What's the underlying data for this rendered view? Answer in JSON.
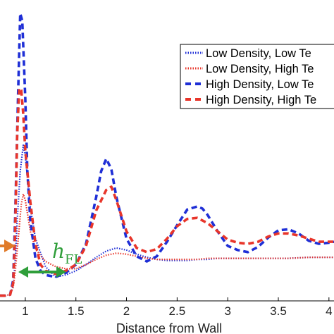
{
  "chart_data": {
    "type": "line",
    "title": "",
    "xlabel": "Distance from Wall",
    "ylabel": "",
    "xlim": [
      0.75,
      4.05
    ],
    "ylim": [
      -0.05,
      2.85
    ],
    "xticks": [
      1,
      1.5,
      2,
      2.5,
      3,
      3.5,
      4
    ],
    "xtick_labels": [
      "1",
      "1.5",
      "2",
      "2.5",
      "3",
      "3.5",
      "4"
    ],
    "grid": false,
    "legend_position": "top-right",
    "annotation": {
      "symbol": "h",
      "subscript": "FL",
      "color": "#2f9e3a"
    },
    "orange_arrow_color": "#e07b2a",
    "series": [
      {
        "name": "Low Density, Low Te",
        "color": "#1f2fd6",
        "style": "dotted",
        "x": [
          0.75,
          0.8,
          0.85,
          0.88,
          0.9,
          0.92,
          0.95,
          0.98,
          1.0,
          1.05,
          1.1,
          1.2,
          1.3,
          1.4,
          1.5,
          1.6,
          1.7,
          1.8,
          1.9,
          2.0,
          2.1,
          2.2,
          2.3,
          2.4,
          2.5,
          2.6,
          2.7,
          2.8,
          2.9,
          3.0,
          3.2,
          3.4,
          3.6,
          3.8,
          4.0,
          4.05
        ],
        "y": [
          0.0,
          0.0,
          0.01,
          0.1,
          0.32,
          0.72,
          1.2,
          1.45,
          1.35,
          0.85,
          0.55,
          0.28,
          0.18,
          0.2,
          0.24,
          0.3,
          0.37,
          0.43,
          0.46,
          0.44,
          0.4,
          0.37,
          0.35,
          0.34,
          0.34,
          0.34,
          0.35,
          0.35,
          0.36,
          0.36,
          0.36,
          0.36,
          0.36,
          0.37,
          0.37,
          0.37
        ]
      },
      {
        "name": "Low Density, High Te",
        "color": "#e8352a",
        "style": "dotted",
        "x": [
          0.75,
          0.8,
          0.85,
          0.88,
          0.9,
          0.93,
          0.96,
          0.98,
          1.0,
          1.05,
          1.1,
          1.2,
          1.3,
          1.4,
          1.5,
          1.6,
          1.7,
          1.8,
          1.9,
          2.0,
          2.1,
          2.2,
          2.3,
          2.4,
          2.5,
          2.6,
          2.7,
          2.8,
          2.9,
          3.0,
          3.2,
          3.4,
          3.6,
          3.8,
          4.0,
          4.05
        ],
        "y": [
          0.0,
          0.0,
          0.01,
          0.08,
          0.22,
          0.55,
          0.88,
          0.98,
          0.92,
          0.62,
          0.45,
          0.33,
          0.28,
          0.26,
          0.26,
          0.3,
          0.35,
          0.39,
          0.41,
          0.4,
          0.38,
          0.36,
          0.35,
          0.35,
          0.35,
          0.35,
          0.35,
          0.36,
          0.36,
          0.36,
          0.36,
          0.36,
          0.36,
          0.37,
          0.37,
          0.37
        ]
      },
      {
        "name": "High Density, Low Te",
        "color": "#1f2fd6",
        "style": "dashed",
        "x": [
          0.75,
          0.8,
          0.85,
          0.88,
          0.9,
          0.93,
          0.95,
          0.97,
          1.0,
          1.02,
          1.05,
          1.1,
          1.15,
          1.2,
          1.3,
          1.4,
          1.5,
          1.6,
          1.7,
          1.75,
          1.8,
          1.85,
          1.9,
          2.0,
          2.1,
          2.2,
          2.3,
          2.4,
          2.5,
          2.6,
          2.7,
          2.75,
          2.8,
          2.9,
          3.0,
          3.1,
          3.2,
          3.3,
          3.4,
          3.5,
          3.6,
          3.7,
          3.8,
          3.9,
          4.0,
          4.05
        ],
        "y": [
          0.0,
          0.0,
          0.01,
          0.15,
          0.75,
          2.0,
          2.72,
          2.65,
          1.9,
          1.2,
          0.72,
          0.36,
          0.24,
          0.2,
          0.18,
          0.22,
          0.3,
          0.5,
          0.95,
          1.2,
          1.32,
          1.22,
          0.95,
          0.55,
          0.38,
          0.33,
          0.38,
          0.52,
          0.68,
          0.83,
          0.86,
          0.84,
          0.78,
          0.62,
          0.48,
          0.44,
          0.42,
          0.47,
          0.56,
          0.63,
          0.64,
          0.6,
          0.53,
          0.5,
          0.51,
          0.52
        ]
      },
      {
        "name": "High Density, High Te",
        "color": "#e8352a",
        "style": "dashed",
        "x": [
          0.75,
          0.8,
          0.85,
          0.88,
          0.9,
          0.92,
          0.94,
          0.96,
          0.98,
          1.0,
          1.05,
          1.1,
          1.15,
          1.2,
          1.3,
          1.4,
          1.5,
          1.6,
          1.7,
          1.8,
          1.85,
          1.9,
          2.0,
          2.1,
          2.2,
          2.3,
          2.4,
          2.5,
          2.6,
          2.7,
          2.8,
          2.9,
          3.0,
          3.1,
          3.2,
          3.3,
          3.4,
          3.5,
          3.6,
          3.7,
          3.8,
          3.9,
          4.0,
          4.05
        ],
        "y": [
          0.0,
          0.0,
          0.01,
          0.12,
          0.6,
          1.55,
          2.0,
          1.98,
          1.75,
          1.4,
          0.9,
          0.5,
          0.3,
          0.24,
          0.21,
          0.24,
          0.3,
          0.48,
          0.82,
          1.02,
          1.05,
          0.92,
          0.62,
          0.46,
          0.42,
          0.45,
          0.55,
          0.67,
          0.74,
          0.75,
          0.7,
          0.62,
          0.54,
          0.51,
          0.5,
          0.52,
          0.57,
          0.6,
          0.6,
          0.58,
          0.55,
          0.52,
          0.52,
          0.52
        ]
      }
    ]
  }
}
